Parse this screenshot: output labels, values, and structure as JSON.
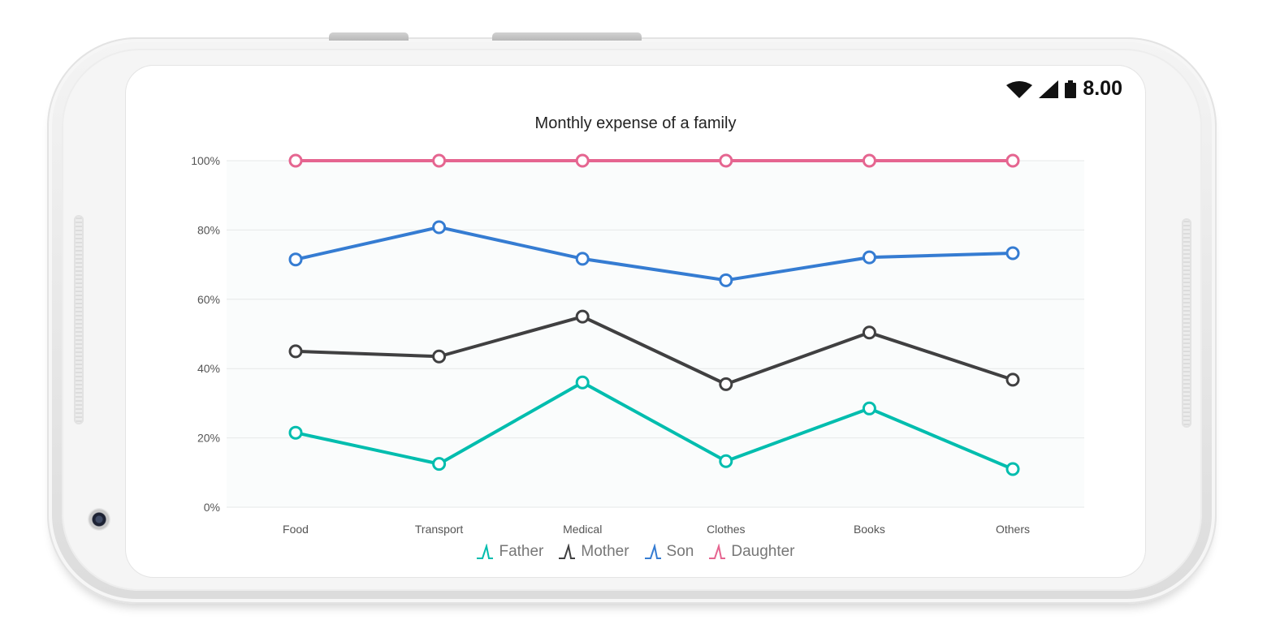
{
  "status": {
    "time": "8.00"
  },
  "chart_data": {
    "type": "line",
    "title": "Monthly expense of a family",
    "categories": [
      "Food",
      "Transport",
      "Medical",
      "Clothes",
      "Books",
      "Others"
    ],
    "yticks": [
      "0%",
      "20%",
      "40%",
      "60%",
      "80%",
      "100%"
    ],
    "ylim": [
      0,
      100
    ],
    "grid": "horizontal",
    "legend_position": "bottom",
    "series": [
      {
        "name": "Father",
        "color": "#00bdae",
        "values": [
          21.5,
          12.5,
          36,
          13.3,
          28.5,
          11
        ]
      },
      {
        "name": "Mother",
        "color": "#404041",
        "values": [
          45,
          43.5,
          55,
          35.5,
          50.4,
          36.8
        ]
      },
      {
        "name": "Son",
        "color": "#357cd2",
        "values": [
          71.5,
          80.8,
          71.7,
          65.5,
          72.1,
          73.3
        ]
      },
      {
        "name": "Daughter",
        "color": "#e56590",
        "values": [
          100,
          100,
          100,
          100,
          100,
          100
        ]
      }
    ]
  }
}
